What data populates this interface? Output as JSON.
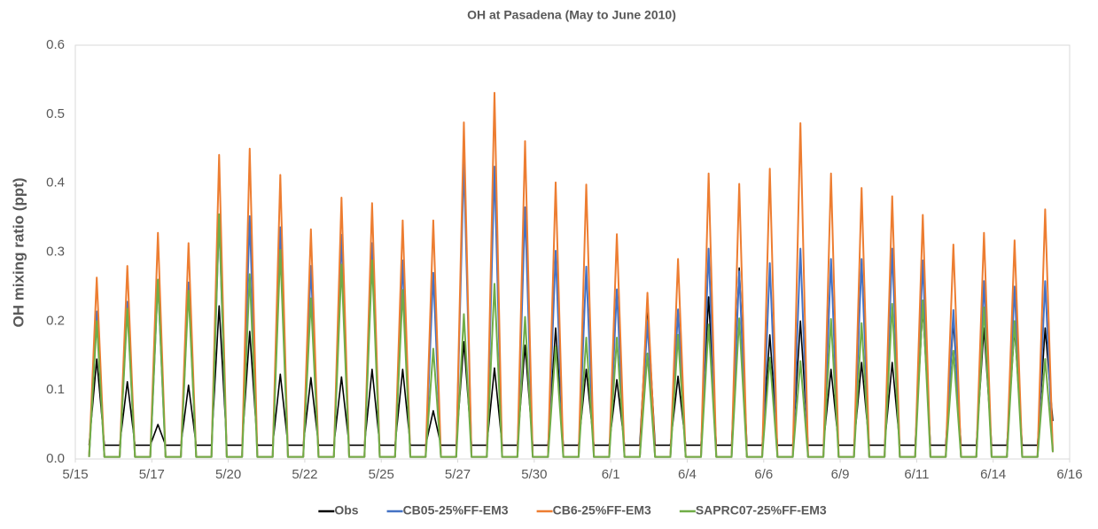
{
  "chart_data": {
    "type": "line",
    "title": "OH at Pasadena (May to June 2010)",
    "y_label": "OH mixing ratio (ppt)",
    "x": [
      0.45,
      0.7,
      0.95,
      1.45,
      1.7,
      1.95,
      2.45,
      2.7,
      2.95,
      3.45,
      3.7,
      3.95,
      4.45,
      4.7,
      4.95,
      5.45,
      5.7,
      5.95,
      6.45,
      6.7,
      6.95,
      7.45,
      7.7,
      7.95,
      8.45,
      8.7,
      8.95,
      9.45,
      9.7,
      9.95,
      10.45,
      10.7,
      10.95,
      11.45,
      11.7,
      11.95,
      12.45,
      12.7,
      12.95,
      13.45,
      13.7,
      13.95,
      14.45,
      14.7,
      14.95,
      15.45,
      15.7,
      15.95,
      16.45,
      16.7,
      16.95,
      17.45,
      17.7,
      17.95,
      18.45,
      18.7,
      18.95,
      19.45,
      19.7,
      19.95,
      20.45,
      20.7,
      20.95,
      21.45,
      21.7,
      21.95,
      22.45,
      22.7,
      22.95,
      23.45,
      23.7,
      23.95,
      24.45,
      24.7,
      24.95,
      25.45,
      25.7,
      25.95,
      26.45,
      26.7,
      26.95,
      27.45,
      27.7,
      27.95,
      28.45,
      28.7,
      28.95,
      29.45,
      29.7,
      29.95,
      30.45,
      30.7,
      30.95,
      31.45,
      31.7,
      31.95
    ],
    "xlim": [
      0,
      32.5
    ],
    "xticks": [
      {
        "value": 0,
        "label": "5/15"
      },
      {
        "value": 2.5,
        "label": "5/17"
      },
      {
        "value": 5,
        "label": "5/20"
      },
      {
        "value": 7.5,
        "label": "5/22"
      },
      {
        "value": 10,
        "label": "5/25"
      },
      {
        "value": 12.5,
        "label": "5/27"
      },
      {
        "value": 15,
        "label": "5/30"
      },
      {
        "value": 17.5,
        "label": "6/1"
      },
      {
        "value": 20,
        "label": "6/4"
      },
      {
        "value": 22.5,
        "label": "6/6"
      },
      {
        "value": 25,
        "label": "6/9"
      },
      {
        "value": 27.5,
        "label": "6/11"
      },
      {
        "value": 30,
        "label": "6/14"
      },
      {
        "value": 32.5,
        "label": "6/16"
      }
    ],
    "ylim": [
      0,
      0.6
    ],
    "yticks": [
      {
        "value": 0,
        "label": "0.0"
      },
      0.1,
      0.2,
      0.3,
      0.4,
      0.5,
      0.6
    ],
    "grid": false,
    "legend": "bottom",
    "series": [
      {
        "name": "Obs",
        "color": "#000000",
        "values": [
          0.02,
          0.145,
          0.02,
          0.02,
          0.112,
          0.02,
          0.02,
          0.05,
          0.02,
          0.02,
          0.107,
          0.02,
          0.02,
          0.222,
          0.02,
          0.02,
          0.185,
          0.02,
          0.02,
          0.123,
          0.02,
          0.02,
          0.118,
          0.02,
          0.02,
          0.119,
          0.02,
          0.02,
          0.13,
          0.02,
          0.02,
          0.13,
          0.02,
          0.02,
          0.07,
          0.02,
          0.02,
          0.17,
          0.02,
          0.02,
          0.132,
          0.02,
          0.02,
          0.165,
          0.02,
          0.02,
          0.19,
          0.02,
          0.02,
          0.13,
          0.02,
          0.02,
          0.115,
          0.02,
          0.02,
          0.225,
          0.02,
          0.02,
          0.12,
          0.02,
          0.02,
          0.235,
          0.02,
          0.02,
          0.277,
          0.02,
          0.02,
          0.18,
          0.02,
          0.02,
          0.2,
          0.02,
          0.02,
          0.13,
          0.02,
          0.02,
          0.14,
          0.02,
          0.02,
          0.14,
          0.02,
          0.02,
          0.22,
          0.02,
          0.02,
          0.2,
          0.02,
          0.02,
          0.19,
          0.02,
          0.02,
          0.19,
          0.02,
          0.02,
          0.19,
          0.055
        ]
      },
      {
        "name": "CB05-25%FF-EM3",
        "color": "#4472c4",
        "values": [
          0.003,
          0.214,
          0.003,
          0.003,
          0.228,
          0.003,
          0.003,
          0.26,
          0.003,
          0.003,
          0.256,
          0.003,
          0.003,
          0.35,
          0.003,
          0.003,
          0.352,
          0.003,
          0.003,
          0.336,
          0.003,
          0.003,
          0.28,
          0.003,
          0.003,
          0.325,
          0.003,
          0.003,
          0.313,
          0.003,
          0.003,
          0.288,
          0.003,
          0.003,
          0.27,
          0.003,
          0.003,
          0.433,
          0.003,
          0.003,
          0.424,
          0.003,
          0.003,
          0.365,
          0.003,
          0.003,
          0.302,
          0.003,
          0.003,
          0.279,
          0.003,
          0.003,
          0.246,
          0.003,
          0.003,
          0.199,
          0.003,
          0.003,
          0.217,
          0.003,
          0.003,
          0.305,
          0.003,
          0.003,
          0.272,
          0.003,
          0.003,
          0.284,
          0.003,
          0.003,
          0.305,
          0.003,
          0.003,
          0.29,
          0.003,
          0.003,
          0.29,
          0.003,
          0.003,
          0.305,
          0.003,
          0.003,
          0.288,
          0.003,
          0.003,
          0.216,
          0.003,
          0.003,
          0.258,
          0.003,
          0.003,
          0.25,
          0.003,
          0.003,
          0.258,
          0.01
        ]
      },
      {
        "name": "CB6-25%FF-EM3",
        "color": "#ed7d31",
        "values": [
          0.003,
          0.263,
          0.003,
          0.003,
          0.28,
          0.003,
          0.003,
          0.328,
          0.003,
          0.003,
          0.313,
          0.003,
          0.003,
          0.441,
          0.003,
          0.003,
          0.45,
          0.003,
          0.003,
          0.412,
          0.003,
          0.003,
          0.333,
          0.003,
          0.003,
          0.379,
          0.003,
          0.003,
          0.371,
          0.003,
          0.003,
          0.346,
          0.003,
          0.003,
          0.346,
          0.003,
          0.003,
          0.488,
          0.003,
          0.003,
          0.531,
          0.003,
          0.003,
          0.461,
          0.003,
          0.003,
          0.401,
          0.003,
          0.003,
          0.398,
          0.003,
          0.003,
          0.326,
          0.003,
          0.003,
          0.241,
          0.003,
          0.003,
          0.29,
          0.003,
          0.003,
          0.414,
          0.003,
          0.003,
          0.399,
          0.003,
          0.003,
          0.421,
          0.003,
          0.003,
          0.487,
          0.003,
          0.003,
          0.414,
          0.003,
          0.003,
          0.393,
          0.003,
          0.003,
          0.381,
          0.003,
          0.003,
          0.354,
          0.003,
          0.003,
          0.311,
          0.003,
          0.003,
          0.328,
          0.003,
          0.003,
          0.317,
          0.003,
          0.003,
          0.362,
          0.01
        ]
      },
      {
        "name": "SAPRC07-25%FF-EM3",
        "color": "#70ad47",
        "values": [
          0.003,
          0.2,
          0.003,
          0.003,
          0.218,
          0.003,
          0.003,
          0.26,
          0.003,
          0.003,
          0.244,
          0.003,
          0.003,
          0.355,
          0.003,
          0.003,
          0.268,
          0.003,
          0.003,
          0.303,
          0.003,
          0.003,
          0.233,
          0.003,
          0.003,
          0.282,
          0.003,
          0.003,
          0.288,
          0.003,
          0.003,
          0.245,
          0.003,
          0.003,
          0.16,
          0.003,
          0.003,
          0.21,
          0.003,
          0.003,
          0.254,
          0.003,
          0.003,
          0.206,
          0.003,
          0.003,
          0.163,
          0.003,
          0.003,
          0.176,
          0.003,
          0.003,
          0.176,
          0.003,
          0.003,
          0.153,
          0.003,
          0.003,
          0.18,
          0.003,
          0.003,
          0.195,
          0.003,
          0.003,
          0.204,
          0.003,
          0.003,
          0.147,
          0.003,
          0.003,
          0.142,
          0.003,
          0.003,
          0.203,
          0.003,
          0.003,
          0.197,
          0.003,
          0.003,
          0.225,
          0.003,
          0.003,
          0.23,
          0.003,
          0.003,
          0.157,
          0.003,
          0.003,
          0.22,
          0.003,
          0.003,
          0.2,
          0.003,
          0.003,
          0.145,
          0.01
        ]
      }
    ]
  }
}
